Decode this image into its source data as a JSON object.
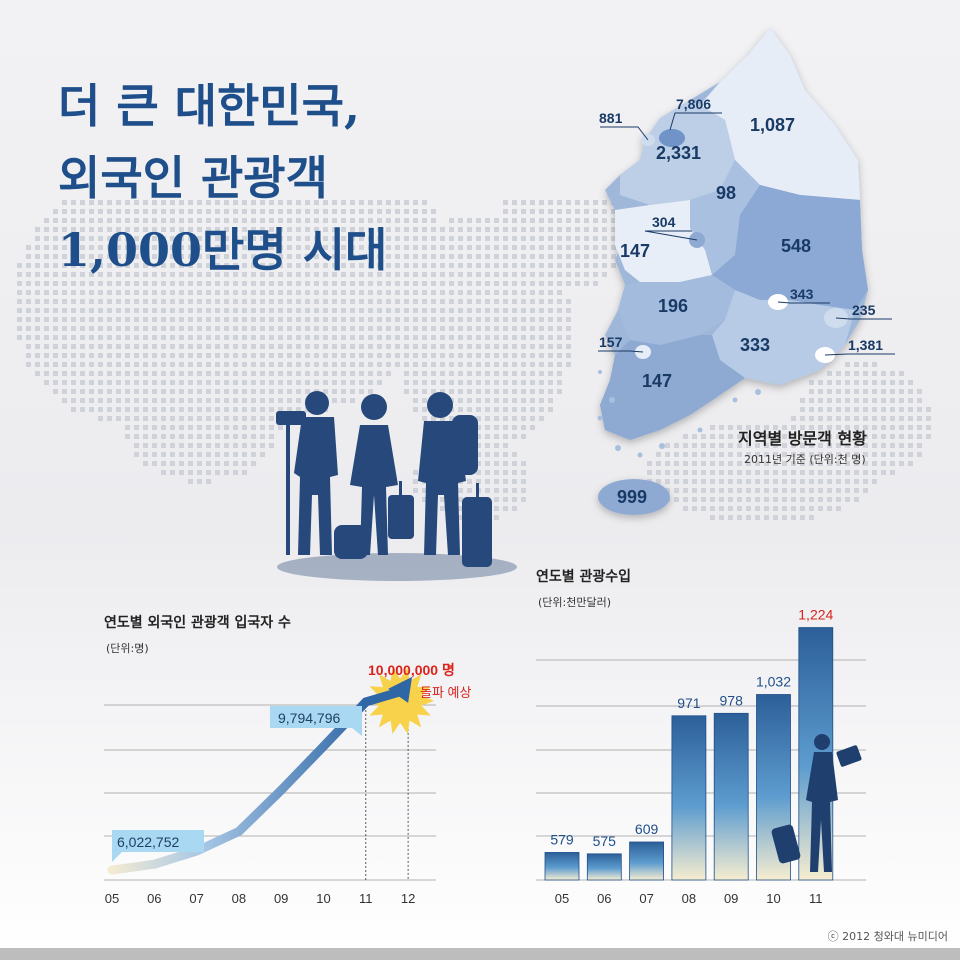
{
  "headline": {
    "line1": "더 큰 대한민국,",
    "line2": "외국인 관광객",
    "line3": "1,000만명 시대"
  },
  "map": {
    "caption": "지역별 방문객 현황",
    "subcaption": "2011년 기준 (단위:천 명)",
    "regions": [
      {
        "name": "incheon",
        "label": "881"
      },
      {
        "name": "seoul",
        "label": "7,806"
      },
      {
        "name": "gangwon",
        "label": "1,087"
      },
      {
        "name": "gyeonggi",
        "label": "2,331"
      },
      {
        "name": "chungbuk",
        "label": "98"
      },
      {
        "name": "daejeon",
        "label": "304"
      },
      {
        "name": "chungnam",
        "label": "147"
      },
      {
        "name": "gyeongbuk",
        "label": "548"
      },
      {
        "name": "jeonbuk",
        "label": "196"
      },
      {
        "name": "daegu",
        "label": "343"
      },
      {
        "name": "ulsan",
        "label": "235"
      },
      {
        "name": "gwangju",
        "label": "157"
      },
      {
        "name": "gyeongnam",
        "label": "333"
      },
      {
        "name": "busan",
        "label": "1,381"
      },
      {
        "name": "jeonnam",
        "label": "147"
      },
      {
        "name": "jeju",
        "label": "999"
      }
    ]
  },
  "chart_data": [
    {
      "type": "line",
      "title": "연도별 외국인 관광객 입국자 수",
      "unit": "(단위:명)",
      "categories": [
        "05",
        "06",
        "07",
        "08",
        "09",
        "10",
        "11",
        "12"
      ],
      "series": [
        {
          "values": [
            6022752,
            6155000,
            6448000,
            6891000,
            7818000,
            8798000,
            9794796,
            10000000
          ]
        }
      ],
      "annotations": [
        {
          "x": "05",
          "label": "6,022,752"
        },
        {
          "x": "11",
          "label": "9,794,796"
        },
        {
          "x": "12",
          "label": "10,000,000 명",
          "sublabel": "돌파 예상"
        }
      ],
      "ylim": [
        5800000,
        10400000
      ],
      "grid": true,
      "highlight_colors": {
        "line": "#3b6fa6",
        "burst": "#f7d24a",
        "forecast_text": "#d9231c"
      }
    },
    {
      "type": "bar",
      "title": "연도별 관광수입",
      "unit": "(단위:천만달러)",
      "categories": [
        "05",
        "06",
        "07",
        "08",
        "09",
        "10",
        "11"
      ],
      "values": [
        579,
        575,
        609,
        971,
        978,
        1032,
        1224
      ],
      "value_labels": [
        "579",
        "575",
        "609",
        "971",
        "978",
        "1,032",
        "1,224"
      ],
      "highlight": {
        "index": 6,
        "color": "#d9231c"
      },
      "ylim": [
        500,
        1260
      ],
      "grid": true
    }
  ],
  "copyright": "ⓒ 2012 청와대 뉴미디어"
}
